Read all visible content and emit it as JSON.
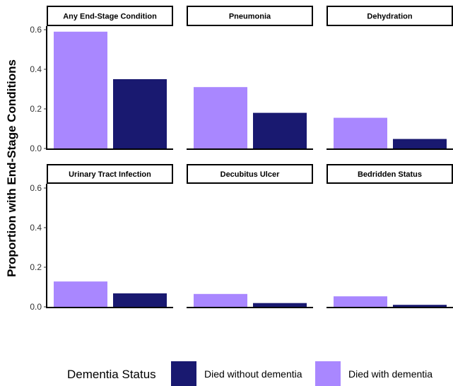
{
  "chart_data": {
    "type": "bar",
    "ylabel": "Proportion with End-Stage Conditions",
    "xlabel": "",
    "ylim": [
      0,
      0.65
    ],
    "yticks": [
      0.0,
      0.2,
      0.4,
      0.6
    ],
    "ytick_labels": [
      "0.0",
      "0.2",
      "0.4",
      "0.6"
    ],
    "grid": false,
    "legend": {
      "title": "Dementia Status",
      "placement": "bottom",
      "entries": [
        {
          "name": "Died without dementia",
          "color": "#191970"
        },
        {
          "name": "Died with dementia",
          "color": "#A987FF"
        }
      ]
    },
    "bar_order": [
      "Died with dementia",
      "Died without dementia"
    ],
    "colors": {
      "Died with dementia": "#A987FF",
      "Died without dementia": "#191970"
    },
    "panels": [
      {
        "title": "Any End-Stage Condition",
        "values": {
          "Died with dementia": 0.59,
          "Died without dementia": 0.35
        }
      },
      {
        "title": "Pneumonia",
        "values": {
          "Died with dementia": 0.31,
          "Died without dementia": 0.18
        }
      },
      {
        "title": "Dehydration",
        "values": {
          "Died with dementia": 0.155,
          "Died without dementia": 0.048
        }
      },
      {
        "title": "Urinary Tract Infection",
        "values": {
          "Died with dementia": 0.128,
          "Died without dementia": 0.068
        }
      },
      {
        "title": "Decubitus Ulcer",
        "values": {
          "Died with dementia": 0.065,
          "Died without dementia": 0.019
        }
      },
      {
        "title": "Bedridden Status",
        "values": {
          "Died with dementia": 0.053,
          "Died without dementia": 0.01
        }
      }
    ]
  }
}
